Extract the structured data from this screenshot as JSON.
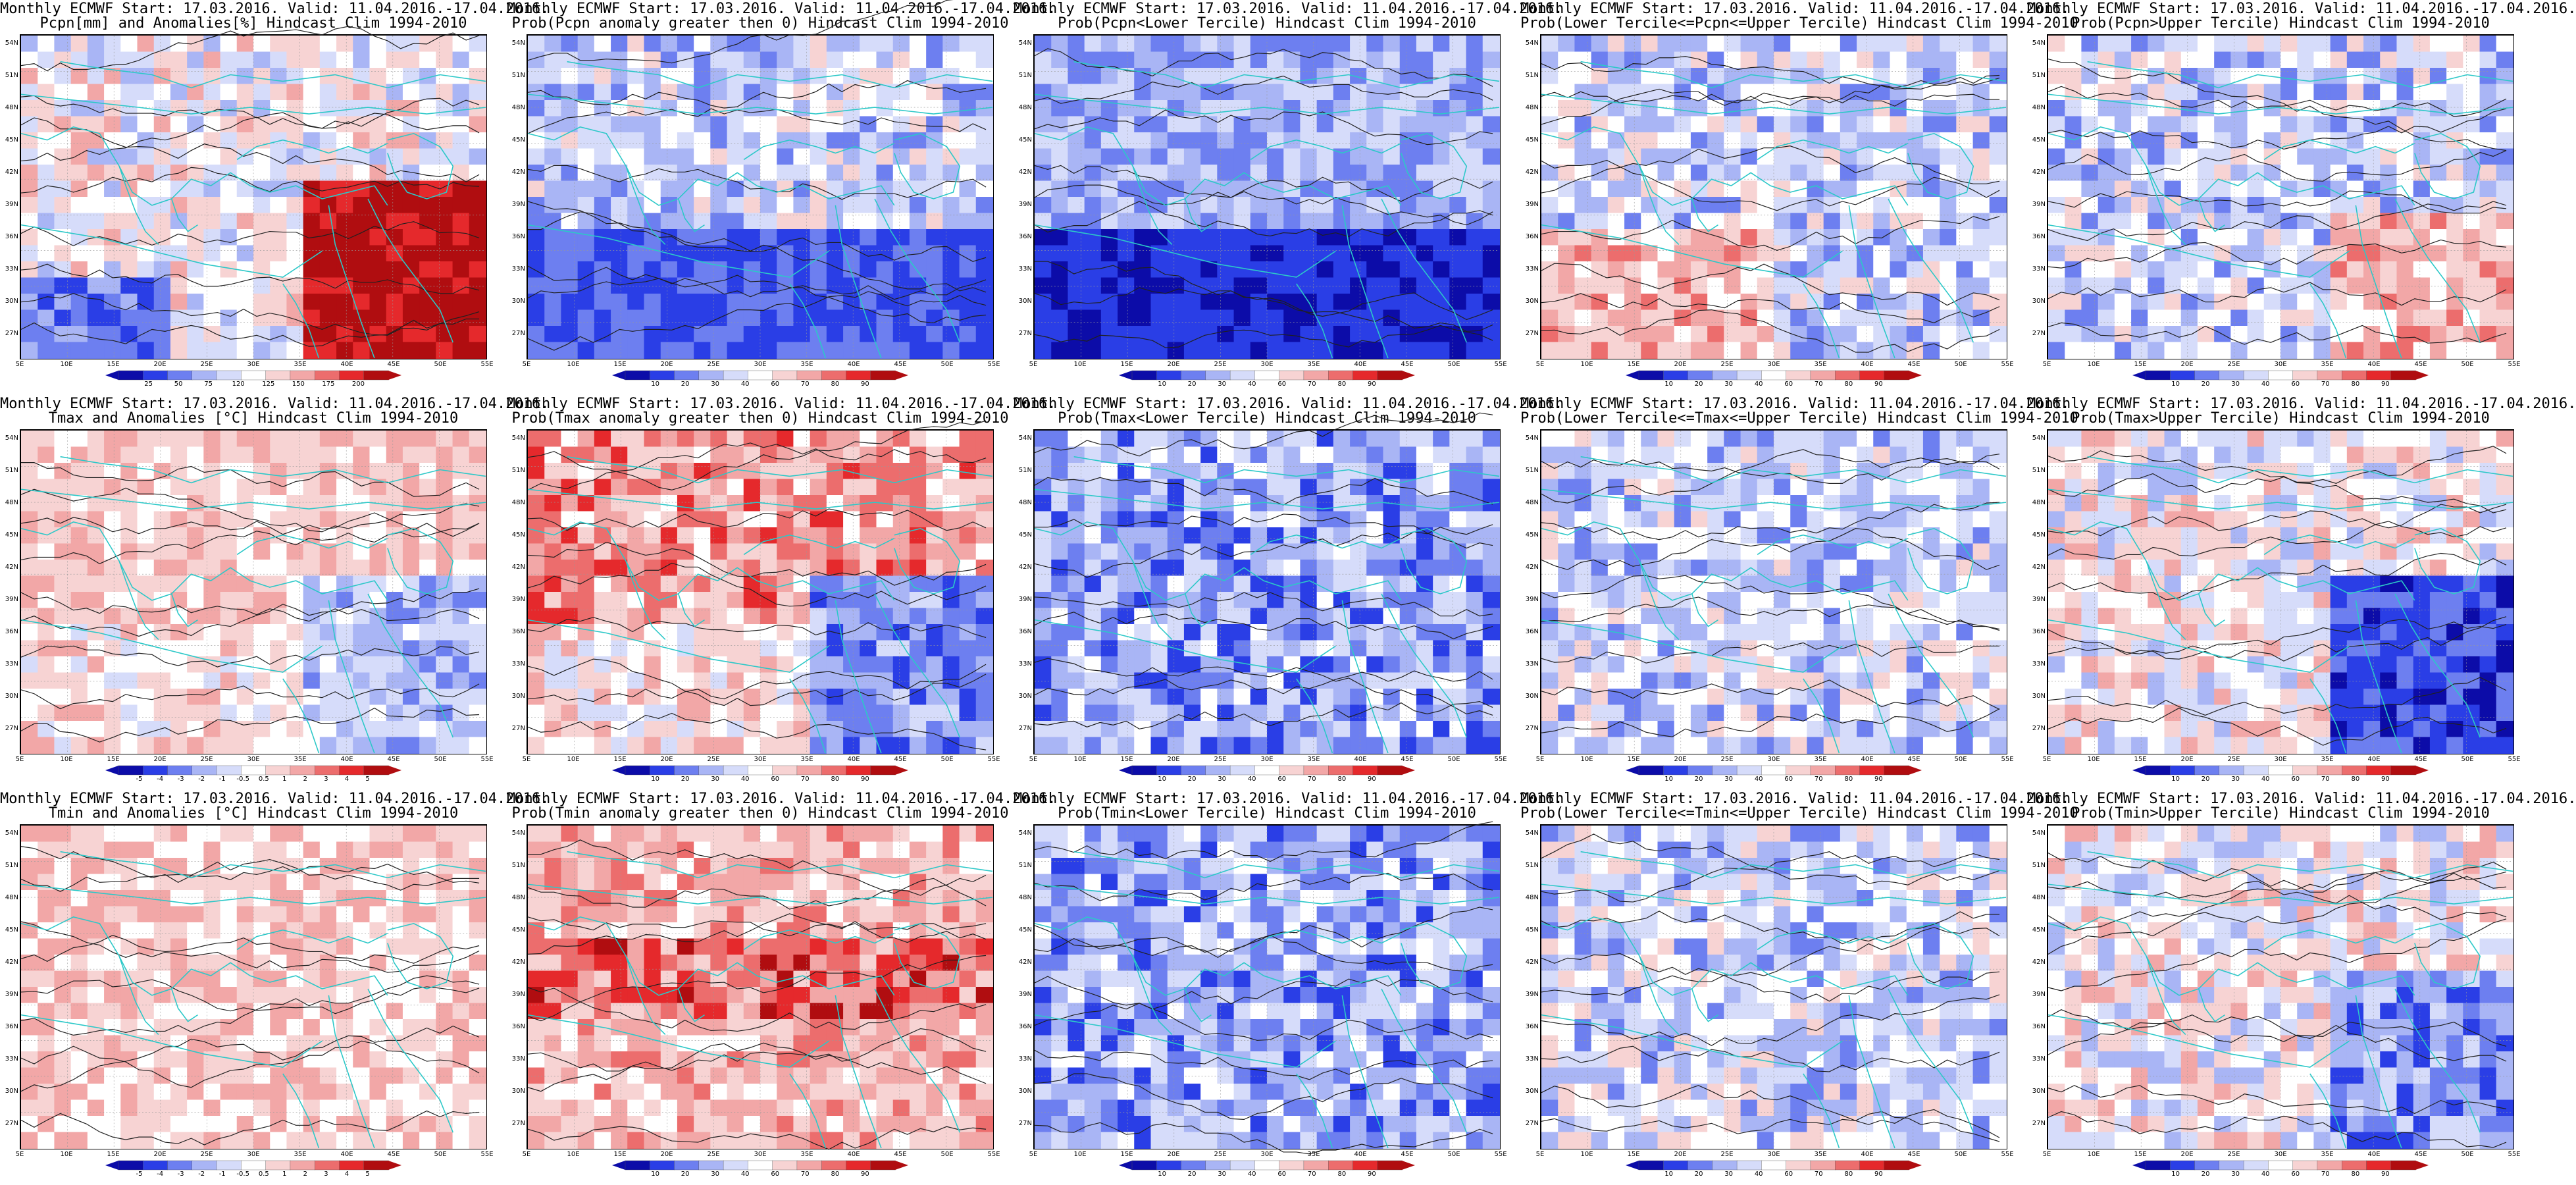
{
  "lat_labels": [
    "54N",
    "51N",
    "48N",
    "45N",
    "42N",
    "39N",
    "36N",
    "33N",
    "30N",
    "27N"
  ],
  "lon_labels": [
    "5E",
    "10E",
    "15E",
    "20E",
    "25E",
    "30E",
    "35E",
    "40E",
    "45E",
    "50E",
    "55E"
  ],
  "colors": {
    "blue_dark": "#0c0ca8",
    "blue": "#2a3ee6",
    "blue_mid": "#6d7ff0",
    "blue_light": "#a9b5f5",
    "blue_pale": "#d6dcfa",
    "white": "#ffffff",
    "red_pale": "#f7d3d3",
    "red_light": "#f2a7a7",
    "red_mid": "#ec6d6d",
    "red": "#e5292c",
    "red_dark": "#b00d10",
    "coast": "#2cc8c8",
    "contour": "#202020"
  },
  "panels": [
    {
      "title1": "Monthly ECMWF Start: 17.03.2016. Valid: 11.04.2016.-17.04.2016.",
      "title2": "Pcpn[mm] and Anomalies[%] Hindcast Clim 1994-2010",
      "scale": [
        "25",
        "50",
        "75",
        "120",
        "125",
        "150",
        "175",
        "200"
      ],
      "pattern": "pcpn_anom"
    },
    {
      "title1": "Monthly ECMWF Start: 17.03.2016. Valid: 11.04.2016.-17.04.2016.",
      "title2": "Prob(Pcpn anomaly greater then 0) Hindcast Clim 1994-2010",
      "scale": [
        "10",
        "20",
        "30",
        "40",
        "60",
        "70",
        "80",
        "90"
      ],
      "pattern": "pcpn_prob"
    },
    {
      "title1": "Monthly ECMWF Start: 17.03.2016. Valid: 11.04.2016.-17.04.2016.",
      "title2": "Prob(Pcpn<Lower Tercile) Hindcast Clim 1994-2010",
      "scale": [
        "10",
        "20",
        "30",
        "40",
        "60",
        "70",
        "80",
        "90"
      ],
      "pattern": "pcpn_low"
    },
    {
      "title1": "Monthly ECMWF Start: 17.03.2016. Valid: 11.04.2016.-17.04.2016.",
      "title2": "Prob(Lower Tercile<=Pcpn<=Upper Tercile) Hindcast Clim 1994-2010",
      "scale": [
        "10",
        "20",
        "30",
        "40",
        "60",
        "70",
        "80",
        "90"
      ],
      "pattern": "pcpn_mid"
    },
    {
      "title1": "Monthly ECMWF Start: 17.03.2016. Valid: 11.04.2016.-17.04.2016.",
      "title2": "Prob(Pcpn>Upper Tercile) Hindcast Clim 1994-2010",
      "scale": [
        "10",
        "20",
        "30",
        "40",
        "60",
        "70",
        "80",
        "90"
      ],
      "pattern": "pcpn_up"
    },
    {
      "title1": "Monthly ECMWF Start: 17.03.2016. Valid: 11.04.2016.-17.04.2016.",
      "title2": "Tmax and Anomalies [°C] Hindcast Clim 1994-2010",
      "scale": [
        "-5",
        "-4",
        "-3",
        "-2",
        "-1",
        "-0.5",
        "0.5",
        "1",
        "2",
        "3",
        "4",
        "5"
      ],
      "pattern": "tmax_anom"
    },
    {
      "title1": "Monthly ECMWF Start: 17.03.2016. Valid: 11.04.2016.-17.04.2016.",
      "title2": "Prob(Tmax anomaly greater then 0) Hindcast Clim 1994-2010",
      "scale": [
        "10",
        "20",
        "30",
        "40",
        "60",
        "70",
        "80",
        "90"
      ],
      "pattern": "tmax_prob"
    },
    {
      "title1": "Monthly ECMWF Start: 17.03.2016. Valid: 11.04.2016.-17.04.2016.",
      "title2": "Prob(Tmax<Lower Tercile) Hindcast Clim 1994-2010",
      "scale": [
        "10",
        "20",
        "30",
        "40",
        "60",
        "70",
        "80",
        "90"
      ],
      "pattern": "tmax_low"
    },
    {
      "title1": "Monthly ECMWF Start: 17.03.2016. Valid: 11.04.2016.-17.04.2016.",
      "title2": "Prob(Lower Tercile<=Tmax<=Upper Tercile) Hindcast Clim 1994-2010",
      "scale": [
        "10",
        "20",
        "30",
        "40",
        "60",
        "70",
        "80",
        "90"
      ],
      "pattern": "tmax_mid"
    },
    {
      "title1": "Monthly ECMWF Start: 17.03.2016. Valid: 11.04.2016.-17.04.2016.",
      "title2": "Prob(Tmax>Upper Tercile) Hindcast Clim 1994-2010",
      "scale": [
        "10",
        "20",
        "30",
        "40",
        "60",
        "70",
        "80",
        "90"
      ],
      "pattern": "tmax_up"
    },
    {
      "title1": "Monthly ECMWF Start: 17.03.2016. Valid: 11.04.2016.-17.04.2016.",
      "title2": "Tmin and Anomalies [°C] Hindcast Clim 1994-2010",
      "scale": [
        "-5",
        "-4",
        "-3",
        "-2",
        "-1",
        "-0.5",
        "0.5",
        "1",
        "2",
        "3",
        "4",
        "5"
      ],
      "pattern": "tmin_anom"
    },
    {
      "title1": "Monthly ECMWF Start: 17.03.2016. Valid: 11.04.2016.-17.04.2016.",
      "title2": "Prob(Tmin anomaly greater then 0) Hindcast Clim 1994-2010",
      "scale": [
        "10",
        "20",
        "30",
        "40",
        "60",
        "70",
        "80",
        "90"
      ],
      "pattern": "tmin_prob"
    },
    {
      "title1": "Monthly ECMWF Start: 17.03.2016. Valid: 11.04.2016.-17.04.2016.",
      "title2": "Prob(Tmin<Lower Tercile) Hindcast Clim 1994-2010",
      "scale": [
        "10",
        "20",
        "30",
        "40",
        "60",
        "70",
        "80",
        "90"
      ],
      "pattern": "tmin_low"
    },
    {
      "title1": "Monthly ECMWF Start: 17.03.2016. Valid: 11.04.2016.-17.04.2016.",
      "title2": "Prob(Lower Tercile<=Tmin<=Upper Tercile) Hindcast Clim 1994-2010",
      "scale": [
        "10",
        "20",
        "30",
        "40",
        "60",
        "70",
        "80",
        "90"
      ],
      "pattern": "tmin_mid"
    },
    {
      "title1": "Monthly ECMWF Start: 17.03.2016. Valid: 11.04.2016.-17.04.2016.",
      "title2": "Prob(Tmin>Upper Tercile) Hindcast Clim 1994-2010",
      "scale": [
        "10",
        "20",
        "30",
        "40",
        "60",
        "70",
        "80",
        "90"
      ],
      "pattern": "tmin_up"
    }
  ]
}
